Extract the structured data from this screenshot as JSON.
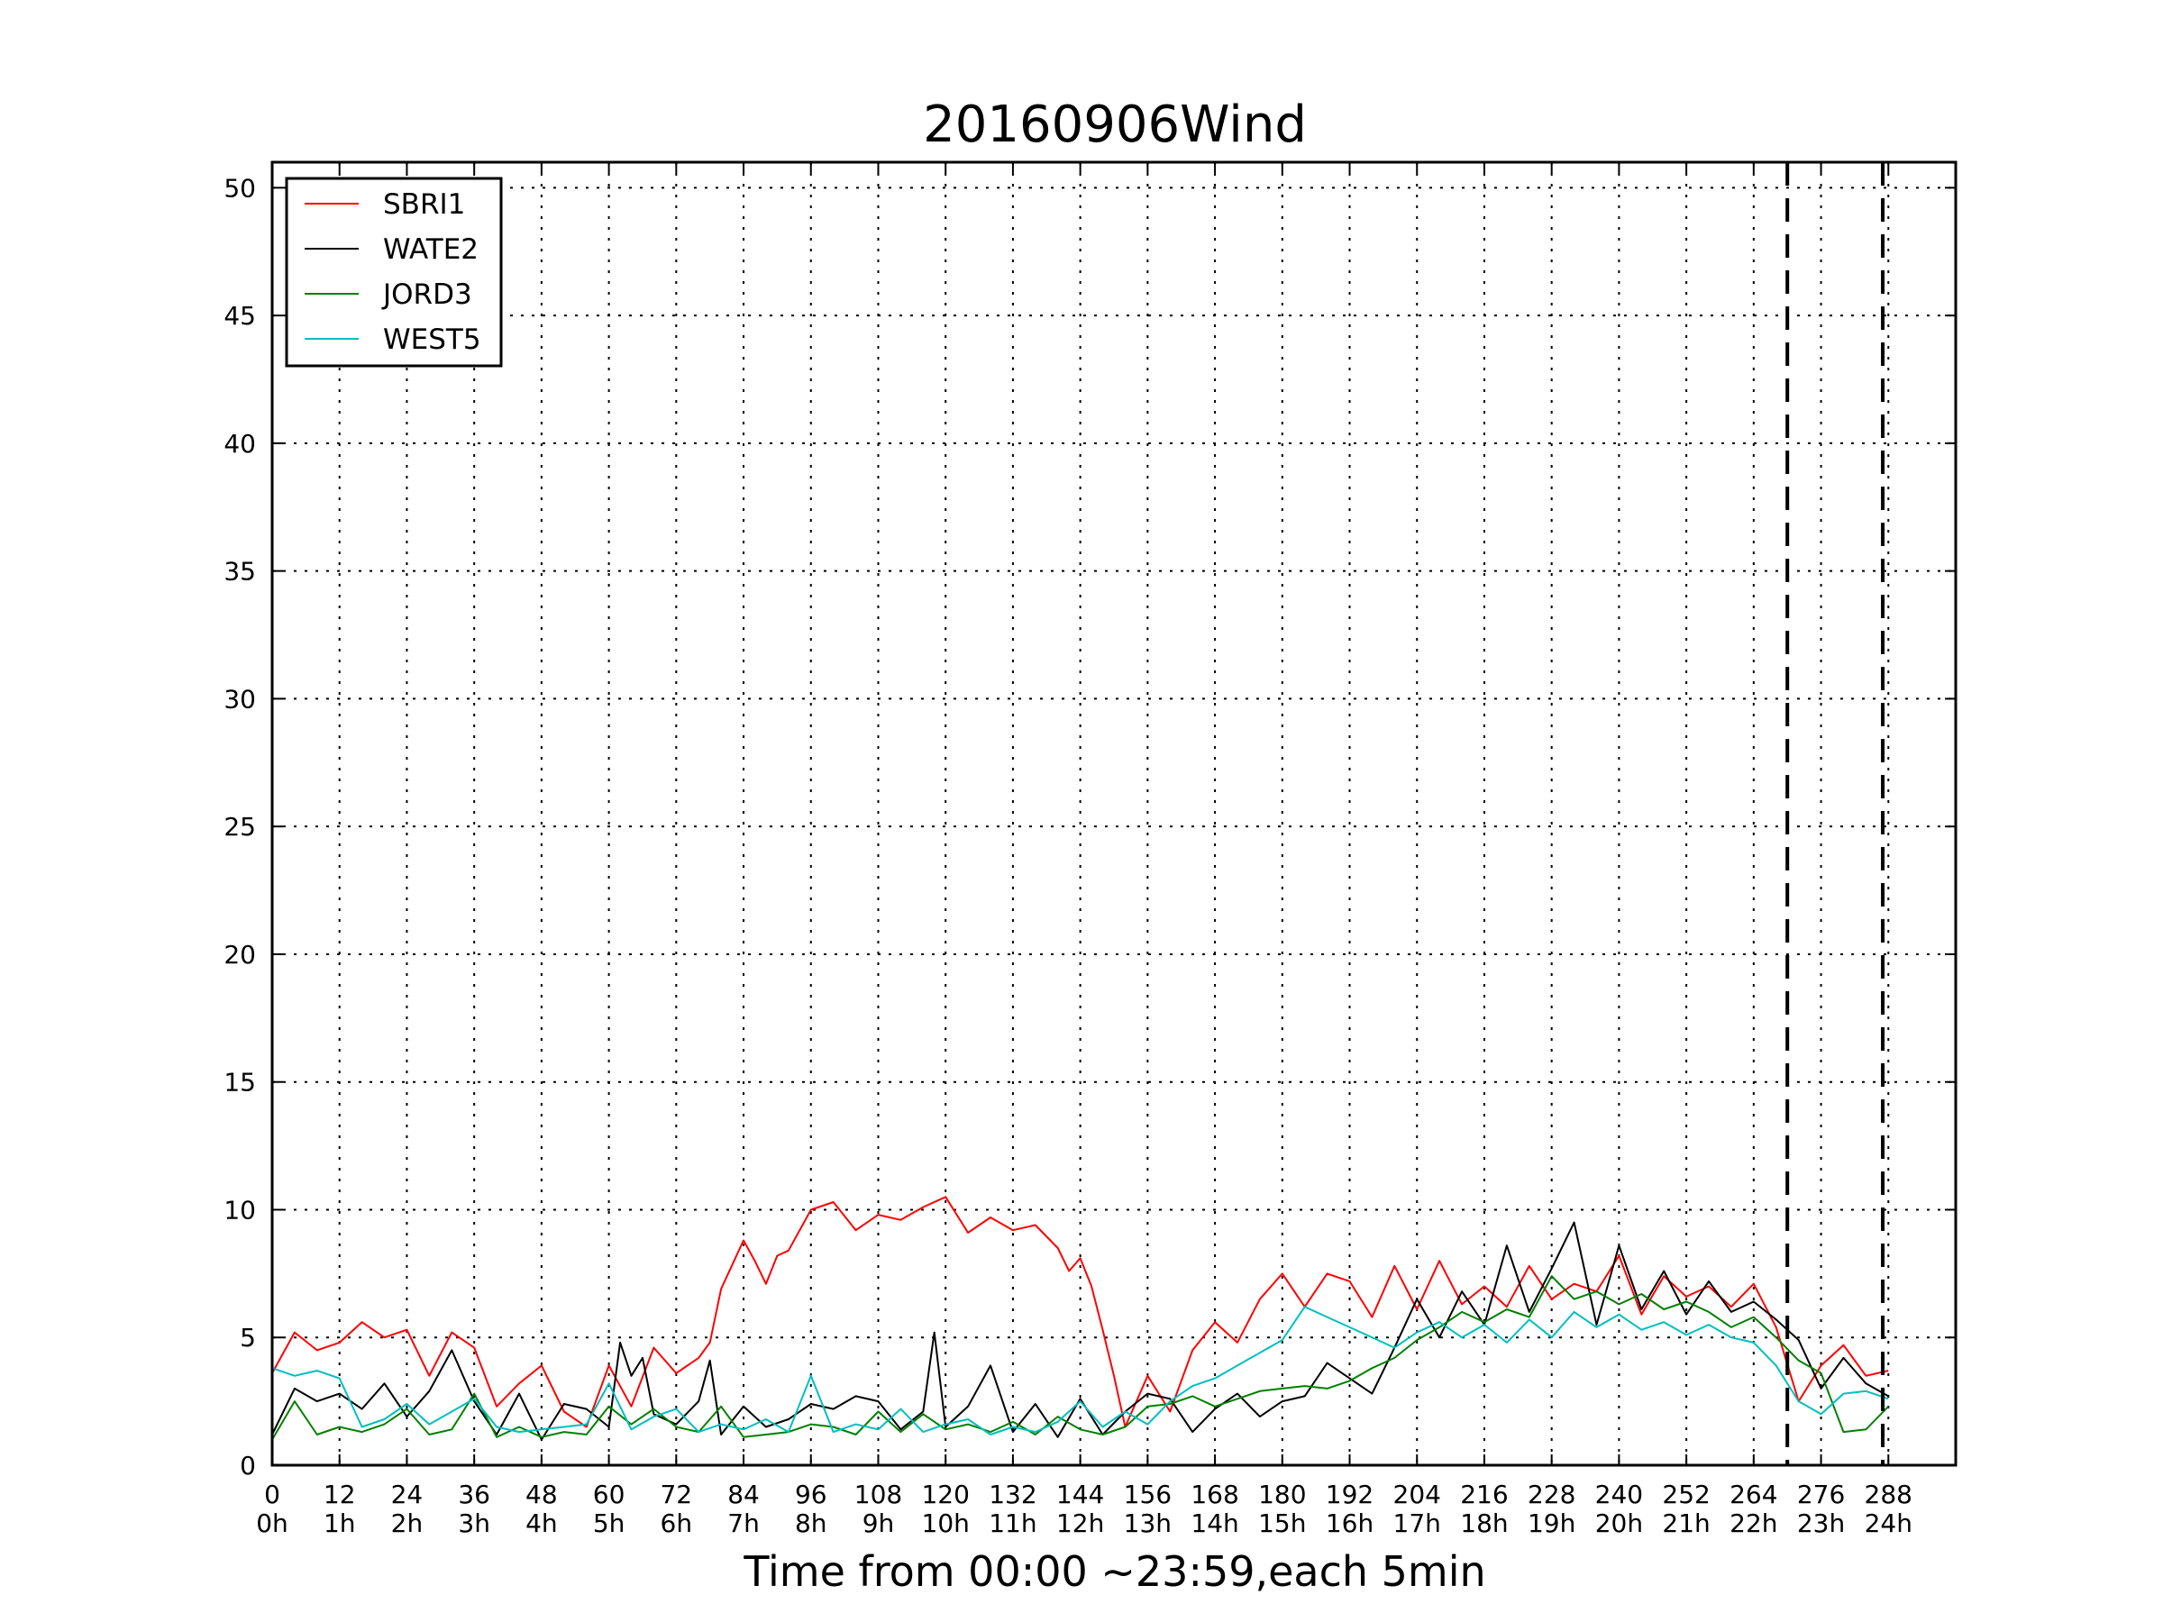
{
  "chart_data": {
    "type": "line",
    "title": "20160906Wind",
    "xlabel": "Time from 00:00 ~23:59,each 5min",
    "ylabel": "",
    "xlim": [
      0,
      300
    ],
    "ylim": [
      0,
      51
    ],
    "grid": true,
    "legend_position": "top-left",
    "x_ticks": [
      {
        "value": 0,
        "label": "0",
        "sublabel": "0h"
      },
      {
        "value": 12,
        "label": "12",
        "sublabel": "1h"
      },
      {
        "value": 24,
        "label": "24",
        "sublabel": "2h"
      },
      {
        "value": 36,
        "label": "36",
        "sublabel": "3h"
      },
      {
        "value": 48,
        "label": "48",
        "sublabel": "4h"
      },
      {
        "value": 60,
        "label": "60",
        "sublabel": "5h"
      },
      {
        "value": 72,
        "label": "72",
        "sublabel": "6h"
      },
      {
        "value": 84,
        "label": "84",
        "sublabel": "7h"
      },
      {
        "value": 96,
        "label": "96",
        "sublabel": "8h"
      },
      {
        "value": 108,
        "label": "108",
        "sublabel": "9h"
      },
      {
        "value": 120,
        "label": "120",
        "sublabel": "10h"
      },
      {
        "value": 132,
        "label": "132",
        "sublabel": "11h"
      },
      {
        "value": 144,
        "label": "144",
        "sublabel": "12h"
      },
      {
        "value": 156,
        "label": "156",
        "sublabel": "13h"
      },
      {
        "value": 168,
        "label": "168",
        "sublabel": "14h"
      },
      {
        "value": 180,
        "label": "180",
        "sublabel": "15h"
      },
      {
        "value": 192,
        "label": "192",
        "sublabel": "16h"
      },
      {
        "value": 204,
        "label": "204",
        "sublabel": "17h"
      },
      {
        "value": 216,
        "label": "216",
        "sublabel": "18h"
      },
      {
        "value": 228,
        "label": "228",
        "sublabel": "19h"
      },
      {
        "value": 240,
        "label": "240",
        "sublabel": "20h"
      },
      {
        "value": 252,
        "label": "252",
        "sublabel": "21h"
      },
      {
        "value": 264,
        "label": "264",
        "sublabel": "22h"
      },
      {
        "value": 276,
        "label": "276",
        "sublabel": "23h"
      },
      {
        "value": 288,
        "label": "288",
        "sublabel": "24h"
      }
    ],
    "y_ticks": [
      0,
      5,
      10,
      15,
      20,
      25,
      30,
      35,
      40,
      45,
      50
    ],
    "vertical_markers": [
      270,
      287
    ],
    "series": [
      {
        "name": "SBRI1",
        "color": "#ff0000",
        "x": [
          0,
          4,
          8,
          12,
          16,
          20,
          24,
          28,
          32,
          36,
          40,
          44,
          48,
          52,
          56,
          60,
          64,
          68,
          72,
          76,
          78,
          80,
          84,
          86,
          88,
          90,
          92,
          96,
          100,
          104,
          108,
          112,
          116,
          120,
          124,
          128,
          132,
          136,
          140,
          142,
          144,
          146,
          148,
          150,
          152,
          156,
          160,
          164,
          168,
          172,
          176,
          180,
          184,
          188,
          192,
          196,
          200,
          204,
          208,
          212,
          216,
          220,
          224,
          228,
          232,
          236,
          240,
          244,
          248,
          252,
          256,
          260,
          264,
          268,
          272,
          276,
          280,
          284,
          288
        ],
        "y": [
          3.6,
          5.2,
          4.5,
          4.8,
          5.6,
          5.0,
          5.3,
          3.5,
          5.2,
          4.6,
          2.3,
          3.2,
          3.9,
          2.1,
          1.5,
          3.9,
          2.3,
          4.6,
          3.6,
          4.2,
          4.8,
          6.9,
          8.8,
          8.0,
          7.1,
          8.2,
          8.4,
          10.0,
          10.3,
          9.2,
          9.8,
          9.6,
          10.1,
          10.5,
          9.1,
          9.7,
          9.2,
          9.4,
          8.5,
          7.6,
          8.1,
          7.0,
          5.3,
          3.5,
          1.5,
          3.5,
          2.1,
          4.5,
          5.6,
          4.8,
          6.5,
          7.5,
          6.2,
          7.5,
          7.2,
          5.8,
          7.8,
          6.1,
          8.0,
          6.3,
          7.0,
          6.2,
          7.8,
          6.5,
          7.1,
          6.8,
          8.2,
          5.9,
          7.4,
          6.6,
          7.0,
          6.2,
          7.1,
          5.4,
          2.5,
          3.9,
          4.7,
          3.5,
          3.7
        ]
      },
      {
        "name": "WATE2",
        "color": "#000000",
        "x": [
          0,
          4,
          8,
          12,
          16,
          20,
          24,
          28,
          32,
          36,
          40,
          44,
          48,
          52,
          56,
          60,
          62,
          64,
          66,
          68,
          72,
          76,
          78,
          80,
          84,
          88,
          92,
          96,
          100,
          104,
          108,
          112,
          116,
          118,
          120,
          124,
          128,
          132,
          136,
          140,
          144,
          148,
          152,
          156,
          160,
          164,
          168,
          172,
          176,
          180,
          184,
          188,
          192,
          196,
          200,
          204,
          208,
          212,
          216,
          220,
          224,
          228,
          232,
          236,
          240,
          244,
          248,
          252,
          256,
          260,
          264,
          268,
          272,
          276,
          280,
          284,
          288
        ],
        "y": [
          1.2,
          3.0,
          2.5,
          2.8,
          2.2,
          3.2,
          1.9,
          2.9,
          4.5,
          2.5,
          1.2,
          2.8,
          1.0,
          2.4,
          2.2,
          1.5,
          4.8,
          3.5,
          4.2,
          2.0,
          1.6,
          2.5,
          4.1,
          1.2,
          2.3,
          1.5,
          1.8,
          2.4,
          2.2,
          2.7,
          2.5,
          1.4,
          2.1,
          5.2,
          1.5,
          2.3,
          3.9,
          1.3,
          2.4,
          1.1,
          2.6,
          1.2,
          2.1,
          2.8,
          2.6,
          1.3,
          2.2,
          2.8,
          1.9,
          2.5,
          2.7,
          4.0,
          3.4,
          2.8,
          4.6,
          6.5,
          5.0,
          6.8,
          5.5,
          8.6,
          6.0,
          7.7,
          9.5,
          5.5,
          8.6,
          6.1,
          7.6,
          5.9,
          7.2,
          6.0,
          6.4,
          5.7,
          4.9,
          3.0,
          4.2,
          3.2,
          2.7
        ]
      },
      {
        "name": "JORD3",
        "color": "#008000",
        "x": [
          0,
          4,
          8,
          12,
          16,
          20,
          24,
          28,
          32,
          36,
          40,
          44,
          48,
          52,
          56,
          60,
          64,
          68,
          72,
          76,
          80,
          84,
          88,
          92,
          96,
          100,
          104,
          108,
          112,
          116,
          120,
          124,
          128,
          132,
          136,
          140,
          144,
          148,
          152,
          156,
          160,
          164,
          168,
          172,
          176,
          180,
          184,
          188,
          192,
          196,
          200,
          204,
          208,
          212,
          216,
          220,
          224,
          228,
          232,
          236,
          240,
          244,
          248,
          252,
          256,
          260,
          264,
          268,
          272,
          276,
          280,
          284,
          288
        ],
        "y": [
          1.0,
          2.5,
          1.2,
          1.5,
          1.3,
          1.6,
          2.2,
          1.2,
          1.4,
          2.8,
          1.1,
          1.5,
          1.1,
          1.3,
          1.2,
          2.3,
          1.6,
          2.2,
          1.5,
          1.3,
          2.3,
          1.1,
          1.2,
          1.3,
          1.6,
          1.5,
          1.2,
          2.1,
          1.3,
          2.0,
          1.4,
          1.6,
          1.3,
          1.7,
          1.2,
          1.9,
          1.4,
          1.2,
          1.5,
          2.3,
          2.4,
          2.7,
          2.3,
          2.6,
          2.9,
          3.0,
          3.1,
          3.0,
          3.3,
          3.8,
          4.2,
          4.9,
          5.4,
          6.0,
          5.6,
          6.1,
          5.8,
          7.4,
          6.5,
          6.8,
          6.3,
          6.7,
          6.1,
          6.4,
          6.0,
          5.4,
          5.8,
          5.0,
          4.1,
          3.6,
          1.3,
          1.4,
          2.3
        ]
      },
      {
        "name": "WEST5",
        "color": "#00bfbf",
        "x": [
          0,
          4,
          8,
          12,
          16,
          20,
          24,
          28,
          32,
          36,
          40,
          44,
          48,
          52,
          56,
          60,
          64,
          68,
          72,
          76,
          80,
          84,
          88,
          92,
          96,
          100,
          104,
          108,
          112,
          116,
          120,
          124,
          128,
          132,
          136,
          140,
          144,
          148,
          152,
          156,
          160,
          164,
          168,
          172,
          176,
          180,
          184,
          188,
          192,
          196,
          200,
          204,
          208,
          212,
          216,
          220,
          224,
          228,
          232,
          236,
          240,
          244,
          248,
          252,
          256,
          260,
          264,
          268,
          272,
          276,
          280,
          284,
          288
        ],
        "y": [
          3.8,
          3.5,
          3.7,
          3.4,
          1.5,
          1.8,
          2.4,
          1.6,
          2.1,
          2.6,
          1.5,
          1.3,
          1.4,
          1.5,
          1.6,
          3.2,
          1.4,
          1.9,
          2.2,
          1.3,
          1.6,
          1.4,
          1.8,
          1.3,
          3.5,
          1.3,
          1.6,
          1.4,
          2.2,
          1.3,
          1.6,
          1.8,
          1.2,
          1.5,
          1.3,
          1.7,
          2.5,
          1.5,
          2.1,
          1.6,
          2.5,
          3.1,
          3.4,
          3.9,
          4.4,
          4.9,
          6.2,
          5.8,
          5.4,
          5.0,
          4.6,
          5.2,
          5.6,
          5.0,
          5.5,
          4.8,
          5.7,
          5.0,
          6.0,
          5.4,
          5.9,
          5.3,
          5.6,
          5.1,
          5.5,
          5.0,
          4.8,
          3.9,
          2.5,
          2.0,
          2.8,
          2.9,
          2.6
        ]
      }
    ]
  }
}
